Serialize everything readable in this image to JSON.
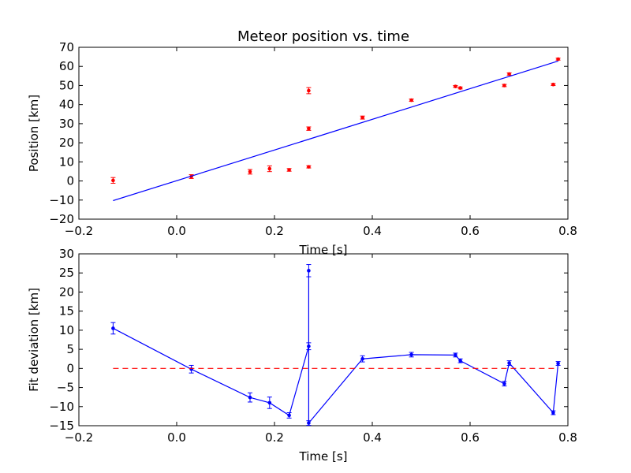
{
  "chart_data": [
    {
      "type": "scatter",
      "title": "Meteor position vs. time",
      "xlabel": "Time [s]",
      "ylabel": "Position [km]",
      "xlim": [
        -0.2,
        0.8
      ],
      "ylim": [
        -20,
        70
      ],
      "xticks": [
        "−0.2",
        "0.0",
        "0.2",
        "0.4",
        "0.6",
        "0.8"
      ],
      "yticks": [
        "−20",
        "−10",
        "0",
        "10",
        "20",
        "30",
        "40",
        "50",
        "60",
        "70"
      ],
      "grid": false,
      "colors": {
        "points": "#ff0000",
        "fit": "#0000ff"
      },
      "series": [
        {
          "kind": "points_with_errorbars",
          "points": [
            {
              "x": -0.13,
              "y": 0.3,
              "err": 1.5
            },
            {
              "x": 0.03,
              "y": 2.3,
              "err": 1.0
            },
            {
              "x": 0.15,
              "y": 4.8,
              "err": 1.2
            },
            {
              "x": 0.19,
              "y": 6.4,
              "err": 1.5
            },
            {
              "x": 0.23,
              "y": 5.8,
              "err": 0.7
            },
            {
              "x": 0.27,
              "y": 7.4,
              "err": 0.6
            },
            {
              "x": 0.27,
              "y": 27.4,
              "err": 0.9
            },
            {
              "x": 0.27,
              "y": 47.3,
              "err": 1.6
            },
            {
              "x": 0.38,
              "y": 33.2,
              "err": 0.8
            },
            {
              "x": 0.48,
              "y": 42.3,
              "err": 0.6
            },
            {
              "x": 0.57,
              "y": 49.5,
              "err": 0.5
            },
            {
              "x": 0.58,
              "y": 48.7,
              "err": 0.5
            },
            {
              "x": 0.67,
              "y": 50.0,
              "err": 0.6
            },
            {
              "x": 0.68,
              "y": 56.0,
              "err": 0.6
            },
            {
              "x": 0.77,
              "y": 50.5,
              "err": 0.5
            },
            {
              "x": 0.78,
              "y": 63.8,
              "err": 0.5
            }
          ]
        },
        {
          "kind": "line",
          "x": [
            -0.13,
            0.78
          ],
          "y": [
            -10.3,
            62.8
          ]
        }
      ]
    },
    {
      "type": "line",
      "xlabel": "Time [s]",
      "ylabel": "Fit deviation [km]",
      "xlim": [
        -0.2,
        0.8
      ],
      "ylim": [
        -15,
        30
      ],
      "xticks": [
        "−0.2",
        "0.0",
        "0.2",
        "0.4",
        "0.6",
        "0.8"
      ],
      "yticks": [
        "−15",
        "−10",
        "−5",
        "0",
        "5",
        "10",
        "15",
        "20",
        "25",
        "30"
      ],
      "grid": false,
      "colors": {
        "deviation": "#0000ff",
        "zero_line": "#ff0000"
      },
      "series": [
        {
          "kind": "line_with_errorbars",
          "points": [
            {
              "x": -0.13,
              "y": 10.5,
              "err": 1.5
            },
            {
              "x": 0.03,
              "y": -0.2,
              "err": 1.0
            },
            {
              "x": 0.15,
              "y": -7.6,
              "err": 1.2
            },
            {
              "x": 0.19,
              "y": -9.0,
              "err": 1.5
            },
            {
              "x": 0.23,
              "y": -12.3,
              "err": 0.7
            },
            {
              "x": 0.27,
              "y": 5.8,
              "err": 0.9
            },
            {
              "x": 0.27,
              "y": 25.6,
              "err": 1.6
            },
            {
              "x": 0.27,
              "y": -14.3,
              "err": 0.6
            },
            {
              "x": 0.38,
              "y": 2.5,
              "err": 0.8
            },
            {
              "x": 0.48,
              "y": 3.6,
              "err": 0.6
            },
            {
              "x": 0.57,
              "y": 3.5,
              "err": 0.5
            },
            {
              "x": 0.58,
              "y": 2.0,
              "err": 0.5
            },
            {
              "x": 0.67,
              "y": -4.0,
              "err": 0.6
            },
            {
              "x": 0.68,
              "y": 1.4,
              "err": 0.6
            },
            {
              "x": 0.77,
              "y": -11.6,
              "err": 0.5
            },
            {
              "x": 0.78,
              "y": 1.3,
              "err": 0.5
            }
          ]
        },
        {
          "kind": "dashed_line",
          "x": [
            -0.13,
            0.78
          ],
          "y": [
            0,
            0
          ]
        }
      ]
    }
  ]
}
